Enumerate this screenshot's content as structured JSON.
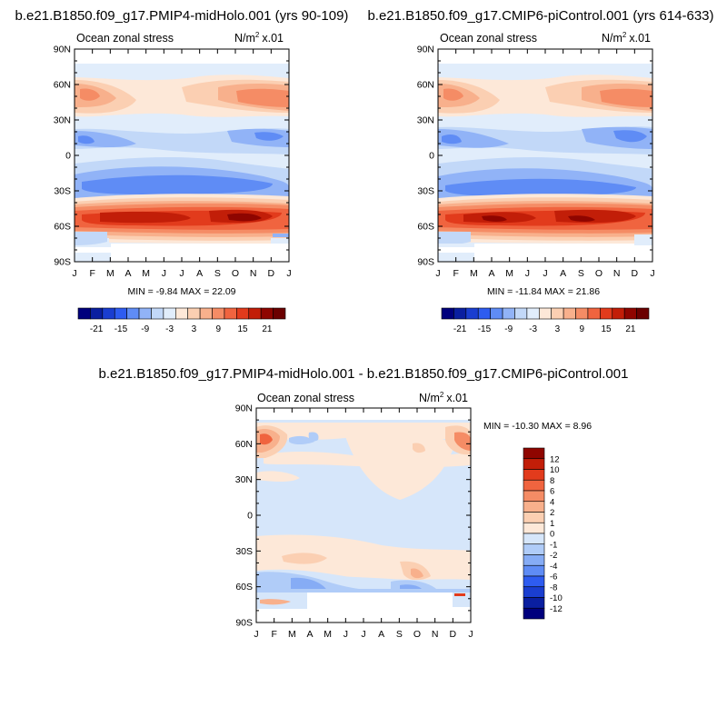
{
  "chart_data": [
    {
      "type": "heatmap",
      "title": "b.e21.B1850.f09_g17.PMIP4-midHolo.001 (yrs 90-109)",
      "left_label": "Ocean zonal stress",
      "right_label": "x.01",
      "units_base": "N/m",
      "units_exp": "2",
      "x_ticks": [
        "J",
        "F",
        "M",
        "A",
        "M",
        "J",
        "J",
        "A",
        "S",
        "O",
        "N",
        "D",
        "J"
      ],
      "y_ticks": [
        "90N",
        "60N",
        "30N",
        "0",
        "30S",
        "60S",
        "90S"
      ],
      "ylim": [
        -90,
        90
      ],
      "stats": "MIN =  -9.84 MAX =  22.09",
      "colorbar_labels": [
        "-21",
        "-15",
        "-9",
        "-3",
        "3",
        "9",
        "15",
        "21"
      ],
      "colors": [
        "#00007d",
        "#0a1fa0",
        "#1a3ed0",
        "#2e5cf0",
        "#5f8cf5",
        "#91b3f7",
        "#c2d8f8",
        "#e1edfb",
        "#fde8d8",
        "#fbcfb2",
        "#f8b08c",
        "#f58c65",
        "#f0643f",
        "#e23b1c",
        "#c21e08",
        "#8f0500",
        "#6b0000"
      ]
    },
    {
      "type": "heatmap",
      "title": "b.e21.B1850.f09_g17.CMIP6-piControl.001 (yrs 614-633)",
      "left_label": "Ocean zonal stress",
      "right_label": "x.01",
      "units_base": "N/m",
      "units_exp": "2",
      "x_ticks": [
        "J",
        "F",
        "M",
        "A",
        "M",
        "J",
        "J",
        "A",
        "S",
        "O",
        "N",
        "D",
        "J"
      ],
      "y_ticks": [
        "90N",
        "60N",
        "30N",
        "0",
        "30S",
        "60S",
        "90S"
      ],
      "ylim": [
        -90,
        90
      ],
      "stats": "MIN =  -11.84 MAX =  21.86",
      "colorbar_labels": [
        "-21",
        "-15",
        "-9",
        "-3",
        "3",
        "9",
        "15",
        "21"
      ]
    },
    {
      "type": "heatmap",
      "title": "b.e21.B1850.f09_g17.PMIP4-midHolo.001 - b.e21.B1850.f09_g17.CMIP6-piControl.001",
      "left_label": "Ocean zonal stress",
      "right_label": "x.01",
      "units_base": "N/m",
      "units_exp": "2",
      "x_ticks": [
        "J",
        "F",
        "M",
        "A",
        "M",
        "J",
        "J",
        "A",
        "S",
        "O",
        "N",
        "D",
        "J"
      ],
      "y_ticks": [
        "90N",
        "60N",
        "30N",
        "0",
        "30S",
        "60S",
        "90S"
      ],
      "ylim": [
        -90,
        90
      ],
      "stats": "MIN = -10.30 MAX =   8.96",
      "colorbar_labels": [
        "12",
        "10",
        "8",
        "6",
        "4",
        "2",
        "1",
        "0",
        "-1",
        "-2",
        "-4",
        "-6",
        "-8",
        "-10",
        "-12"
      ],
      "colors": [
        "#8f0500",
        "#c21e08",
        "#e23b1c",
        "#f0643f",
        "#f58c65",
        "#f8b08c",
        "#fbcfb2",
        "#fde8d8",
        "#d6e6fa",
        "#b0ccf8",
        "#86acf5",
        "#5f8cf5",
        "#2e5cf0",
        "#1a3ed0",
        "#0a1fa0",
        "#00007d"
      ]
    }
  ]
}
